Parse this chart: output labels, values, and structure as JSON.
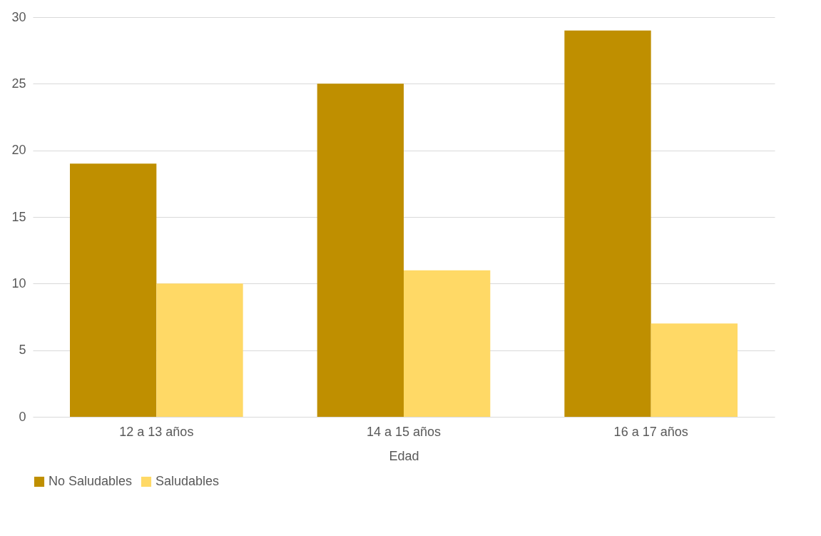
{
  "chart_data": {
    "type": "bar",
    "xlabel": "Edad",
    "categories": [
      "12 a 13 años",
      "14 a 15 años",
      "16 a 17 años"
    ],
    "series": [
      {
        "name": "No Saludables",
        "color": "#bf8f00",
        "values": [
          19,
          25,
          29
        ]
      },
      {
        "name": "Saludables",
        "color": "#ffd966",
        "values": [
          10,
          11,
          7
        ]
      }
    ],
    "ylim": [
      0,
      30
    ],
    "yticks": [
      0,
      5,
      10,
      15,
      20,
      25,
      30
    ],
    "grid": "y",
    "legend": "bottom"
  }
}
